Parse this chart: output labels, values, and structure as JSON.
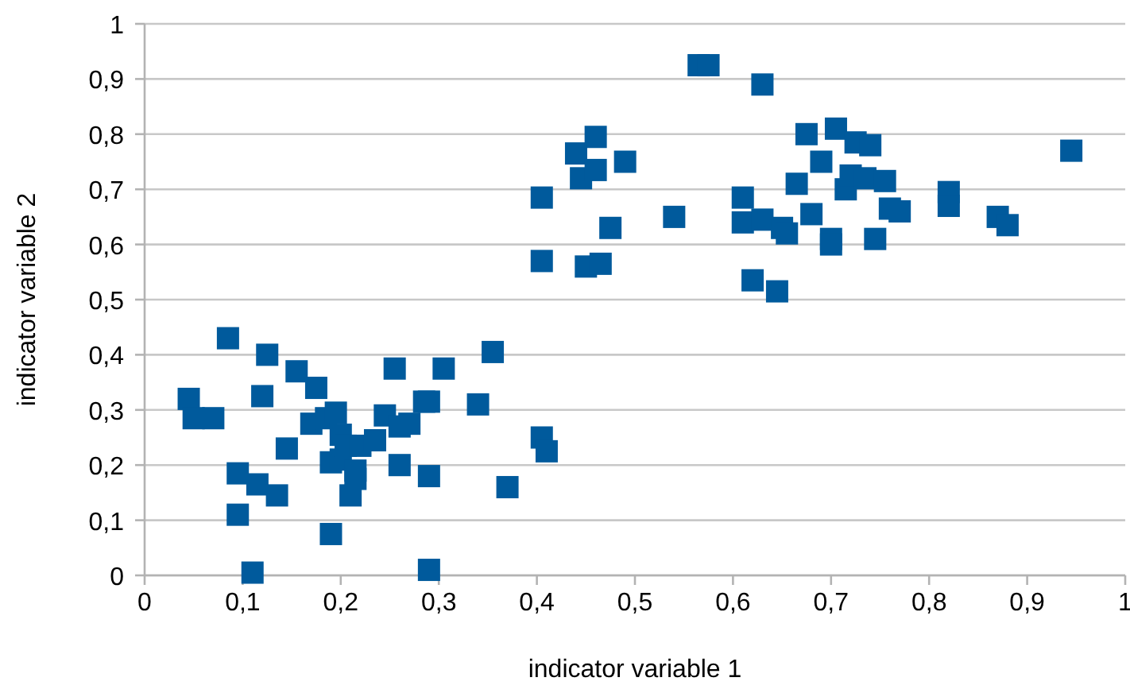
{
  "chart_data": {
    "type": "scatter",
    "xlabel": "indicator variable 1",
    "ylabel": "indicator variable 2",
    "xlim": [
      0,
      1
    ],
    "ylim": [
      0,
      1
    ],
    "xticks": [
      {
        "value": 0,
        "label": "0"
      },
      {
        "value": 0.1,
        "label": "0,1"
      },
      {
        "value": 0.2,
        "label": "0,2"
      },
      {
        "value": 0.3,
        "label": "0,3"
      },
      {
        "value": 0.4,
        "label": "0,4"
      },
      {
        "value": 0.5,
        "label": "0,5"
      },
      {
        "value": 0.6,
        "label": "0,6"
      },
      {
        "value": 0.7,
        "label": "0,7"
      },
      {
        "value": 0.8,
        "label": "0,8"
      },
      {
        "value": 0.9,
        "label": "0,9"
      },
      {
        "value": 1,
        "label": "1"
      }
    ],
    "yticks": [
      {
        "value": 0,
        "label": "0"
      },
      {
        "value": 0.1,
        "label": "0,1"
      },
      {
        "value": 0.2,
        "label": "0,2"
      },
      {
        "value": 0.3,
        "label": "0,3"
      },
      {
        "value": 0.4,
        "label": "0,4"
      },
      {
        "value": 0.5,
        "label": "0,5"
      },
      {
        "value": 0.6,
        "label": "0,6"
      },
      {
        "value": 0.7,
        "label": "0,7"
      },
      {
        "value": 0.8,
        "label": "0,8"
      },
      {
        "value": 0.9,
        "label": "0,9"
      },
      {
        "value": 1,
        "label": "1"
      }
    ],
    "grid": "y",
    "marker": "square",
    "series": [
      {
        "color": "#005a9c",
        "x": [
          0.045,
          0.05,
          0.07,
          0.085,
          0.095,
          0.095,
          0.11,
          0.115,
          0.12,
          0.125,
          0.135,
          0.145,
          0.155,
          0.17,
          0.175,
          0.185,
          0.19,
          0.19,
          0.195,
          0.2,
          0.2,
          0.205,
          0.21,
          0.215,
          0.215,
          0.22,
          0.235,
          0.245,
          0.255,
          0.26,
          0.26,
          0.27,
          0.285,
          0.29,
          0.29,
          0.29,
          0.305,
          0.34,
          0.355,
          0.37,
          0.405,
          0.41,
          0.405,
          0.405,
          0.44,
          0.445,
          0.45,
          0.46,
          0.46,
          0.465,
          0.475,
          0.49,
          0.54,
          0.565,
          0.575,
          0.61,
          0.61,
          0.62,
          0.63,
          0.63,
          0.645,
          0.65,
          0.655,
          0.665,
          0.675,
          0.68,
          0.69,
          0.7,
          0.7,
          0.705,
          0.715,
          0.72,
          0.725,
          0.735,
          0.74,
          0.745,
          0.755,
          0.76,
          0.77,
          0.82,
          0.82,
          0.87,
          0.88,
          0.945
        ],
        "values": [
          0.32,
          0.285,
          0.285,
          0.43,
          0.185,
          0.11,
          0.005,
          0.165,
          0.325,
          0.4,
          0.145,
          0.23,
          0.37,
          0.275,
          0.34,
          0.285,
          0.075,
          0.205,
          0.295,
          0.255,
          0.21,
          0.235,
          0.145,
          0.175,
          0.19,
          0.235,
          0.245,
          0.29,
          0.375,
          0.27,
          0.2,
          0.275,
          0.315,
          0.315,
          0.18,
          0.01,
          0.375,
          0.31,
          0.405,
          0.16,
          0.25,
          0.225,
          0.685,
          0.57,
          0.765,
          0.72,
          0.56,
          0.795,
          0.735,
          0.565,
          0.63,
          0.75,
          0.65,
          0.925,
          0.925,
          0.64,
          0.685,
          0.535,
          0.89,
          0.645,
          0.515,
          0.63,
          0.62,
          0.71,
          0.8,
          0.655,
          0.75,
          0.61,
          0.6,
          0.81,
          0.7,
          0.725,
          0.785,
          0.72,
          0.78,
          0.61,
          0.715,
          0.665,
          0.66,
          0.695,
          0.67,
          0.65,
          0.635,
          0.77
        ]
      }
    ]
  }
}
